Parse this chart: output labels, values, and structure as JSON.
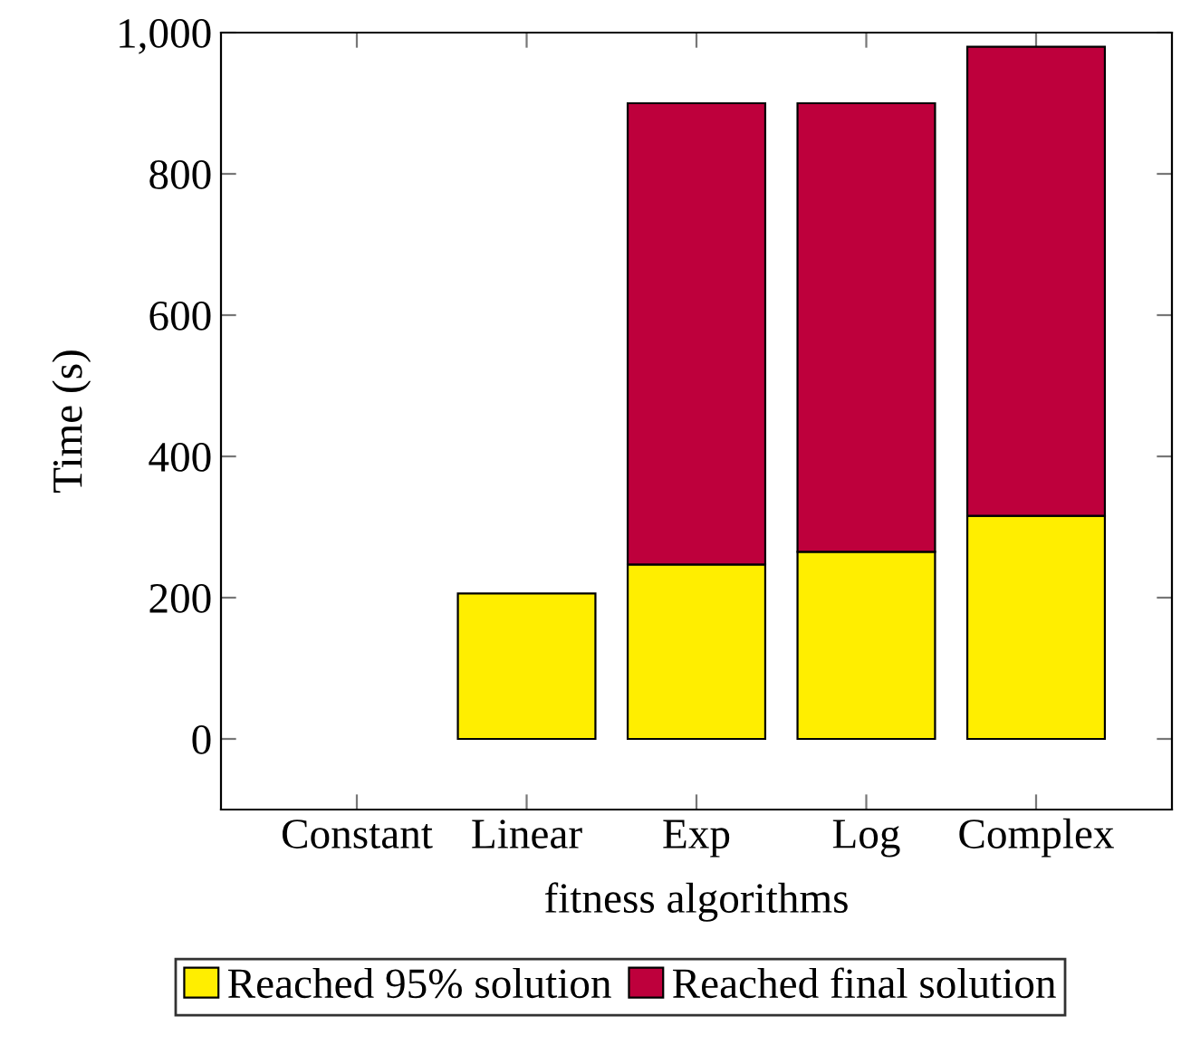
{
  "chart_data": {
    "type": "bar",
    "stacked": true,
    "xlabel": "fitness algorithms",
    "ylabel": "Time (s)",
    "categories": [
      "Constant",
      "Linear",
      "Exp",
      "Log",
      "Complex"
    ],
    "series": [
      {
        "name": "Reached 95% solution",
        "color": "#ffee00",
        "values": [
          null,
          206,
          247,
          265,
          316
        ]
      },
      {
        "name": "Reached final solution",
        "color": "#be003c",
        "values": [
          null,
          null,
          653,
          635,
          664
        ]
      }
    ],
    "ylim": [
      -100,
      1000
    ],
    "yticks": [
      0,
      200,
      400,
      600,
      800,
      {
        "value": 1000,
        "label": "1,000"
      }
    ],
    "grid": false,
    "legend": "bottom"
  }
}
